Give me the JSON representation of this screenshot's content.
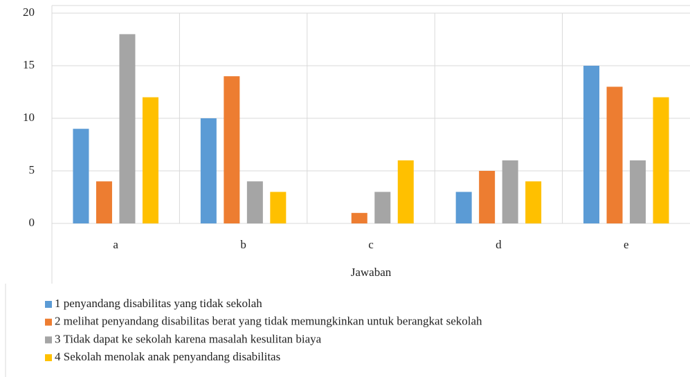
{
  "chart_data": {
    "type": "bar",
    "x_label": "Jawaban",
    "categories": [
      "a",
      "b",
      "c",
      "d",
      "e"
    ],
    "series": [
      {
        "name": "1 penyandang disabilitas yang tidak sekolah",
        "color": "#5b9bd5",
        "values": [
          9,
          10,
          0,
          3,
          15
        ]
      },
      {
        "name": "2 melihat penyandang disabilitas berat yang tidak memungkinkan untuk berangkat sekolah",
        "color": "#ed7d31",
        "values": [
          4,
          14,
          1,
          5,
          13
        ]
      },
      {
        "name": "3 Tidak dapat ke sekolah karena masalah kesulitan biaya",
        "color": "#a5a5a5",
        "values": [
          18,
          4,
          3,
          6,
          6
        ]
      },
      {
        "name": "4 Sekolah menolak anak penyandang disabilitas",
        "color": "#ffc000",
        "values": [
          12,
          3,
          6,
          4,
          12
        ]
      }
    ],
    "ylim": [
      0,
      20
    ],
    "yticks": [
      0,
      5,
      10,
      15,
      20
    ],
    "grid": true,
    "legend": "bottom"
  }
}
